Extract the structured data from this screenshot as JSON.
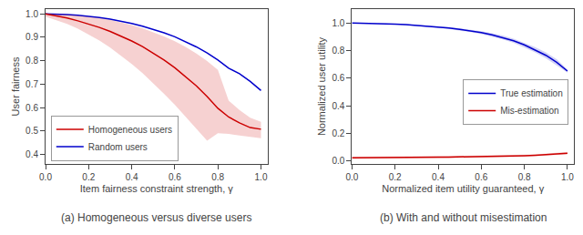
{
  "chart_data": [
    {
      "type": "line",
      "title": "(a) Homogeneous versus diverse users",
      "x_label": "Item fairness constraint strength, γ",
      "y_label": "User fairness",
      "xlim": [
        0.0,
        1.03
      ],
      "ylim": [
        0.36,
        1.02
      ],
      "xticks": [
        {
          "value": 0.0,
          "label": "0.0"
        },
        0.2,
        0.4,
        0.6,
        0.8,
        {
          "value": 1.0,
          "label": "1.0"
        }
      ],
      "yticks": [
        0.4,
        0.5,
        0.6,
        0.7,
        0.8,
        0.9,
        {
          "value": 1.0,
          "label": "1.0"
        }
      ],
      "grid": false,
      "legend": "lower left",
      "x": [
        0.0,
        0.05,
        0.1,
        0.15,
        0.2,
        0.25,
        0.3,
        0.35,
        0.4,
        0.45,
        0.5,
        0.55,
        0.6,
        0.65,
        0.7,
        0.75,
        0.8,
        0.85,
        0.9,
        0.95,
        1.0
      ],
      "series": [
        {
          "name": "Random users",
          "color": "#0000cc",
          "values": [
            1.0,
            0.999,
            0.997,
            0.994,
            0.99,
            0.984,
            0.977,
            0.969,
            0.959,
            0.947,
            0.934,
            0.919,
            0.902,
            0.882,
            0.859,
            0.833,
            0.803,
            0.768,
            0.745,
            0.712,
            0.673
          ]
        },
        {
          "name": "Homogeneous users",
          "color": "#cc0000",
          "values": [
            1.0,
            0.992,
            0.982,
            0.97,
            0.957,
            0.942,
            0.925,
            0.906,
            0.884,
            0.86,
            0.833,
            0.803,
            0.77,
            0.733,
            0.693,
            0.647,
            0.597,
            0.56,
            0.535,
            0.515,
            0.508
          ],
          "y_low": [
            0.988,
            0.974,
            0.957,
            0.937,
            0.913,
            0.886,
            0.856,
            0.822,
            0.786,
            0.747,
            0.704,
            0.659,
            0.612,
            0.562,
            0.511,
            0.459,
            0.491,
            0.488,
            0.481,
            0.475,
            0.47
          ],
          "y_high": [
            1.002,
            1.0,
            0.997,
            0.993,
            0.988,
            0.982,
            0.974,
            0.964,
            0.952,
            0.938,
            0.922,
            0.904,
            0.883,
            0.859,
            0.831,
            0.799,
            0.761,
            0.63,
            0.59,
            0.557,
            0.54
          ]
        }
      ]
    },
    {
      "type": "line",
      "title": "(b) With and without misestimation",
      "x_label": "Normalized item utility guaranteed, γ",
      "y_label": "Normalized user utility",
      "xlim": [
        0.0,
        1.03
      ],
      "ylim": [
        -0.02,
        1.1
      ],
      "xticks": [
        {
          "value": 0.0,
          "label": "0.0"
        },
        0.2,
        0.4,
        0.6,
        0.8,
        {
          "value": 1.0,
          "label": "1.0"
        }
      ],
      "yticks": [
        {
          "value": 0.0,
          "label": "0.0"
        },
        0.2,
        0.4,
        0.6,
        0.8,
        {
          "value": 1.0,
          "label": "1.0"
        }
      ],
      "grid": false,
      "legend": "center right",
      "x": [
        0.0,
        0.05,
        0.1,
        0.15,
        0.2,
        0.25,
        0.3,
        0.35,
        0.4,
        0.45,
        0.5,
        0.55,
        0.6,
        0.65,
        0.7,
        0.75,
        0.8,
        0.85,
        0.9,
        0.95,
        1.0
      ],
      "series": [
        {
          "name": "Mis-estimation",
          "color": "#cc0000",
          "values": [
            0.025,
            0.025,
            0.026,
            0.026,
            0.027,
            0.027,
            0.028,
            0.028,
            0.029,
            0.03,
            0.031,
            0.032,
            0.033,
            0.034,
            0.036,
            0.038,
            0.04,
            0.043,
            0.047,
            0.052,
            0.057
          ],
          "y_low": [
            0.018,
            0.018,
            0.019,
            0.019,
            0.02,
            0.02,
            0.021,
            0.021,
            0.022,
            0.023,
            0.024,
            0.025,
            0.026,
            0.027,
            0.029,
            0.031,
            0.033,
            0.036,
            0.04,
            0.044,
            0.049
          ],
          "y_high": [
            0.032,
            0.032,
            0.033,
            0.033,
            0.034,
            0.034,
            0.035,
            0.035,
            0.036,
            0.037,
            0.038,
            0.039,
            0.04,
            0.041,
            0.043,
            0.045,
            0.047,
            0.05,
            0.055,
            0.06,
            0.067
          ]
        },
        {
          "name": "True estimation",
          "color": "#0000cc",
          "values": [
            1.0,
            0.999,
            0.997,
            0.995,
            0.992,
            0.988,
            0.983,
            0.977,
            0.971,
            0.963,
            0.954,
            0.943,
            0.93,
            0.914,
            0.895,
            0.871,
            0.841,
            0.806,
            0.766,
            0.715,
            0.652
          ],
          "y_low": [
            0.998,
            0.997,
            0.995,
            0.992,
            0.989,
            0.984,
            0.979,
            0.972,
            0.965,
            0.956,
            0.946,
            0.933,
            0.919,
            0.902,
            0.881,
            0.856,
            0.824,
            0.787,
            0.745,
            0.692,
            0.641
          ],
          "y_high": [
            1.002,
            1.001,
            0.999,
            0.998,
            0.995,
            0.992,
            0.987,
            0.982,
            0.977,
            0.97,
            0.962,
            0.953,
            0.941,
            0.926,
            0.909,
            0.886,
            0.858,
            0.825,
            0.787,
            0.738,
            0.663
          ]
        }
      ]
    }
  ]
}
